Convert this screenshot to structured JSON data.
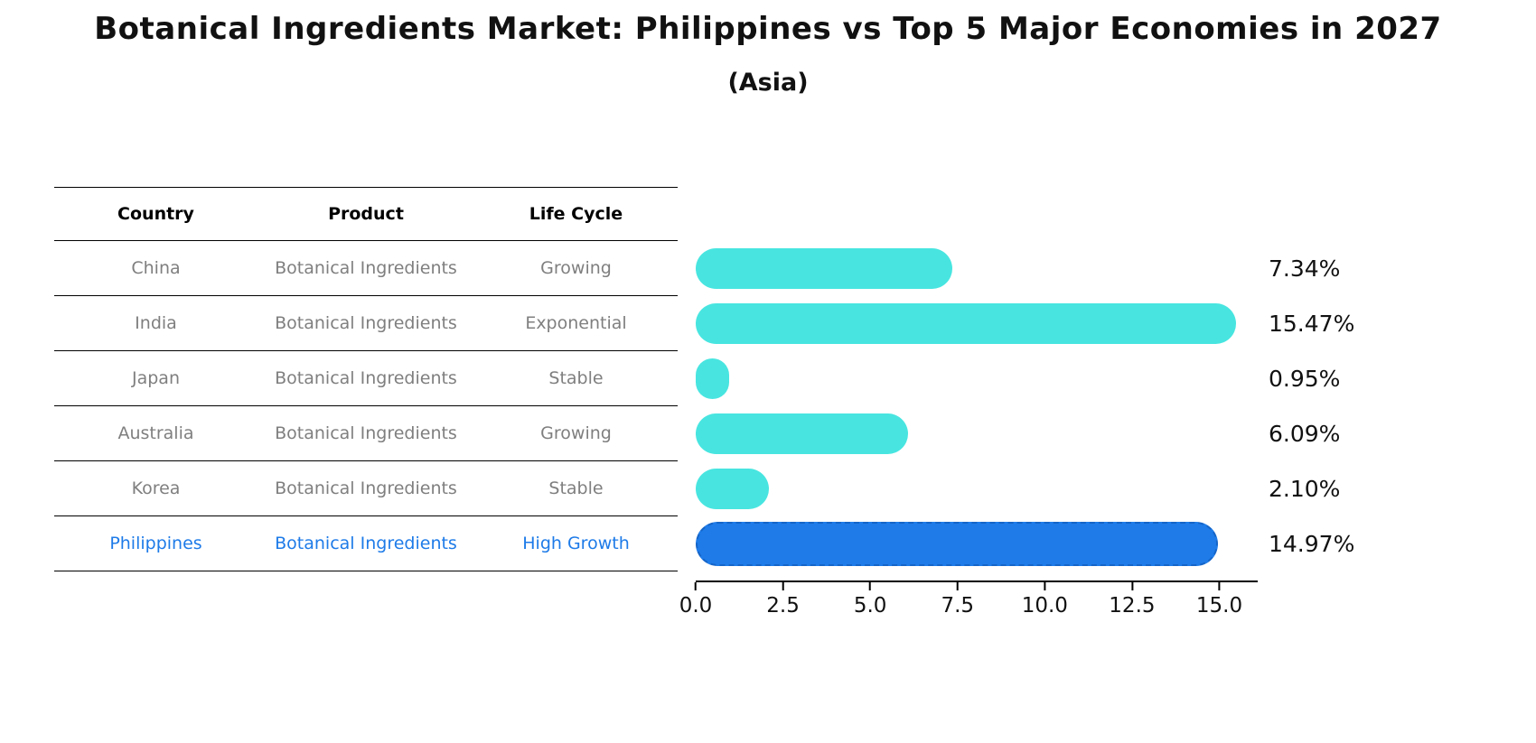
{
  "title": "Botanical Ingredients Market: Philippines vs Top 5 Major Economies in 2027",
  "subtitle": "(Asia)",
  "table": {
    "headers": [
      "Country",
      "Product",
      "Life Cycle"
    ],
    "rows": [
      {
        "country": "China",
        "product": "Botanical Ingredients",
        "life_cycle": "Growing"
      },
      {
        "country": "India",
        "product": "Botanical Ingredients",
        "life_cycle": "Exponential"
      },
      {
        "country": "Japan",
        "product": "Botanical Ingredients",
        "life_cycle": "Stable"
      },
      {
        "country": "Australia",
        "product": "Botanical Ingredients",
        "life_cycle": "Growing"
      },
      {
        "country": "Korea",
        "product": "Botanical Ingredients",
        "life_cycle": "Stable"
      },
      {
        "country": "Philippines",
        "product": "Botanical Ingredients",
        "life_cycle": "High Growth"
      }
    ]
  },
  "chart_data": {
    "type": "bar",
    "orientation": "horizontal",
    "title": "Botanical Ingredients Market: Philippines vs Top 5 Major Economies in 2027 (Asia)",
    "categories": [
      "China",
      "India",
      "Japan",
      "Australia",
      "Korea",
      "Philippines"
    ],
    "values": [
      7.34,
      15.47,
      0.95,
      6.09,
      2.1,
      14.97
    ],
    "value_labels": [
      "7.34%",
      "15.47%",
      "0.95%",
      "6.09%",
      "2.10%",
      "14.97%"
    ],
    "xlabel": "",
    "ylabel": "",
    "xlim": [
      0,
      16.1
    ],
    "x_ticks": [
      "0.0",
      "2.5",
      "5.0",
      "7.5",
      "10.0",
      "12.5",
      "15.0"
    ],
    "x_tick_values": [
      0,
      2.5,
      5,
      7.5,
      10,
      12.5,
      15
    ],
    "grid": false,
    "legend": false,
    "highlight_index": 5,
    "colors": {
      "default_bar": "#48e5e0",
      "highlight_bar": "#1e7be8",
      "highlight_border": "#1565c8",
      "highlight_text": "#1e7be8",
      "row_text": "#7f7f7f",
      "header_text": "#000000"
    }
  }
}
